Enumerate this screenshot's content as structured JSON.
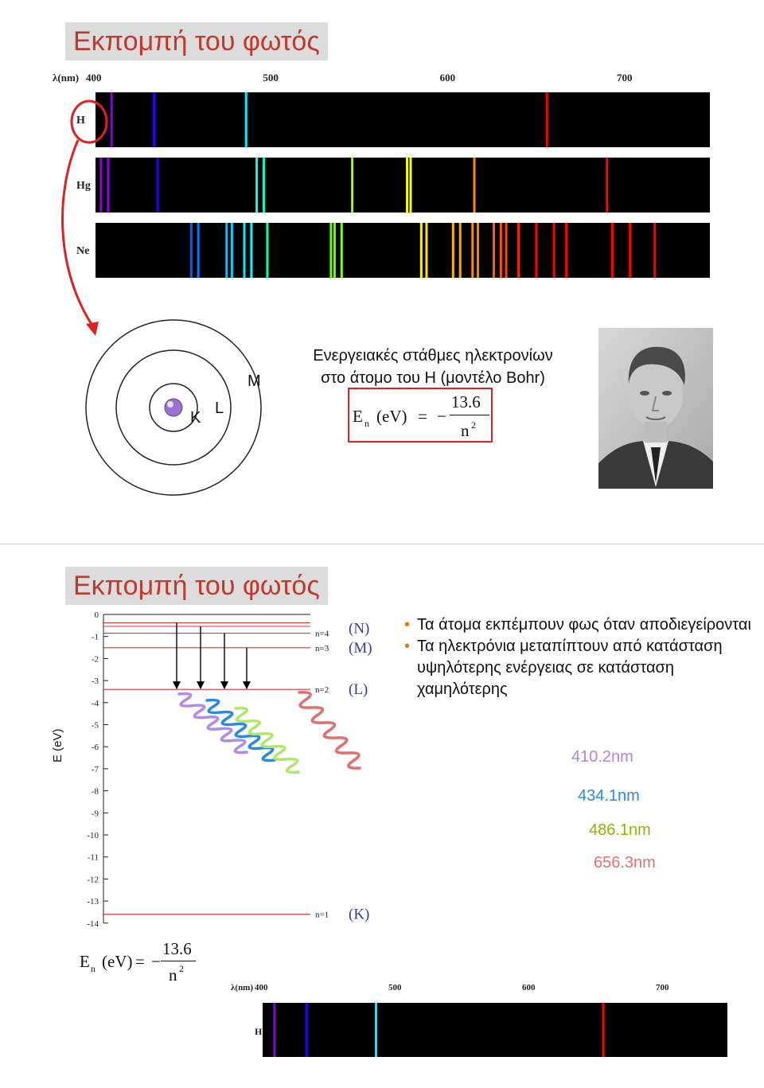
{
  "slide1": {
    "title": "Εκπομπή του φωτός",
    "spectra": {
      "axis_label": "λ(nm)",
      "ticks": [
        "400",
        "500",
        "600",
        "700"
      ],
      "rows": [
        {
          "element": "H",
          "lines_nm": [
            410,
            434,
            486,
            656
          ]
        },
        {
          "element": "Hg",
          "lines_nm": [
            404,
            408,
            436,
            492,
            496,
            546,
            577,
            579,
            615,
            690
          ]
        },
        {
          "element": "Ne",
          "lines_nm": [
            455,
            459,
            475,
            478,
            485,
            489,
            498,
            534,
            536,
            540,
            585,
            588,
            603,
            607,
            614,
            617,
            626,
            630,
            633,
            640,
            650,
            660,
            667,
            693,
            703,
            717
          ]
        }
      ]
    },
    "bohr": {
      "shells": [
        "K",
        "L",
        "M"
      ]
    },
    "caption": [
      "Ενεργειακές στάθμες ηλεκτρονίων",
      "στο άτομο του Η (μοντέλο Bohr)"
    ],
    "formula": {
      "lhs_E": "E",
      "lhs_sub": "n",
      "lhs_unit": "(eV)",
      "eq": "=",
      "minus": "−",
      "numerator": "13.6",
      "denominator_base": "n",
      "denominator_exp": "2"
    }
  },
  "slide2": {
    "title": "Εκπομπή του φωτός",
    "y_axis_label": "E (eV)",
    "y_ticks": [
      "0",
      "-1",
      "-2",
      "-3",
      "-4",
      "-5",
      "-6",
      "-7",
      "-8",
      "-9",
      "-10",
      "-11",
      "-12",
      "-13",
      "-14"
    ],
    "levels": [
      {
        "n_label": "n=4",
        "shell": "(N)",
        "energy": -0.85
      },
      {
        "n_label": "n=3",
        "shell": "(M)",
        "energy": -1.51
      },
      {
        "n_label": "n=2",
        "shell": "(L)",
        "energy": -3.4
      },
      {
        "n_label": "n=1",
        "shell": "(K)",
        "energy": -13.6
      }
    ],
    "bullets": [
      "Τα άτομα εκπέμπουν φως όταν αποδιεγείρονται",
      "Τα ηλεκτρόνια μεταπίπτουν από κατάσταση υψηλότερης ενέργειας σε κατάσταση χαμηλότερης"
    ],
    "wavelengths": [
      {
        "label": "410.2nm",
        "color": "#b084e0"
      },
      {
        "label": "434.1nm",
        "color": "#2a8ae0"
      },
      {
        "label": "486.1nm",
        "color": "#88b800"
      },
      {
        "label": "656.3nm",
        "color": "#e07070"
      }
    ],
    "formula": {
      "lhs_E": "E",
      "lhs_sub": "n",
      "lhs_unit": "(eV)",
      "eq": "=",
      "minus": "−",
      "numerator": "13.6",
      "denominator_base": "n",
      "denominator_exp": "2"
    },
    "h_spectrum": {
      "axis_label": "λ(nm)",
      "ticks": [
        "400",
        "500",
        "600",
        "700"
      ],
      "element": "H",
      "lines_nm": [
        410,
        434,
        486,
        656
      ]
    }
  }
}
